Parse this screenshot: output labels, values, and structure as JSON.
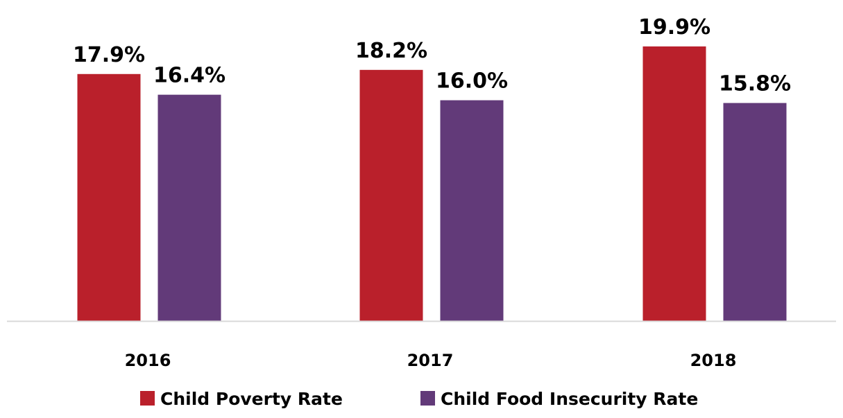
{
  "chart_data": {
    "type": "bar",
    "categories": [
      "2016",
      "2017",
      "2018"
    ],
    "series": [
      {
        "name": "Child Poverty Rate",
        "values": [
          17.9,
          18.2,
          19.9
        ],
        "labels": [
          "17.9%",
          "18.2%",
          "19.9%"
        ],
        "color": "#BA202B"
      },
      {
        "name": "Child Food Insecurity Rate",
        "values": [
          16.4,
          16.0,
          15.8
        ],
        "labels": [
          "16.4%",
          "16.0%",
          "15.8%"
        ],
        "color": "#623A79"
      }
    ],
    "ylim": [
      0,
      20
    ],
    "title": "",
    "xlabel": "",
    "ylabel": "",
    "grid": false,
    "y_axis_visible": false,
    "legend": "bottom-center",
    "axis_line_color": "#D9D9D9"
  }
}
